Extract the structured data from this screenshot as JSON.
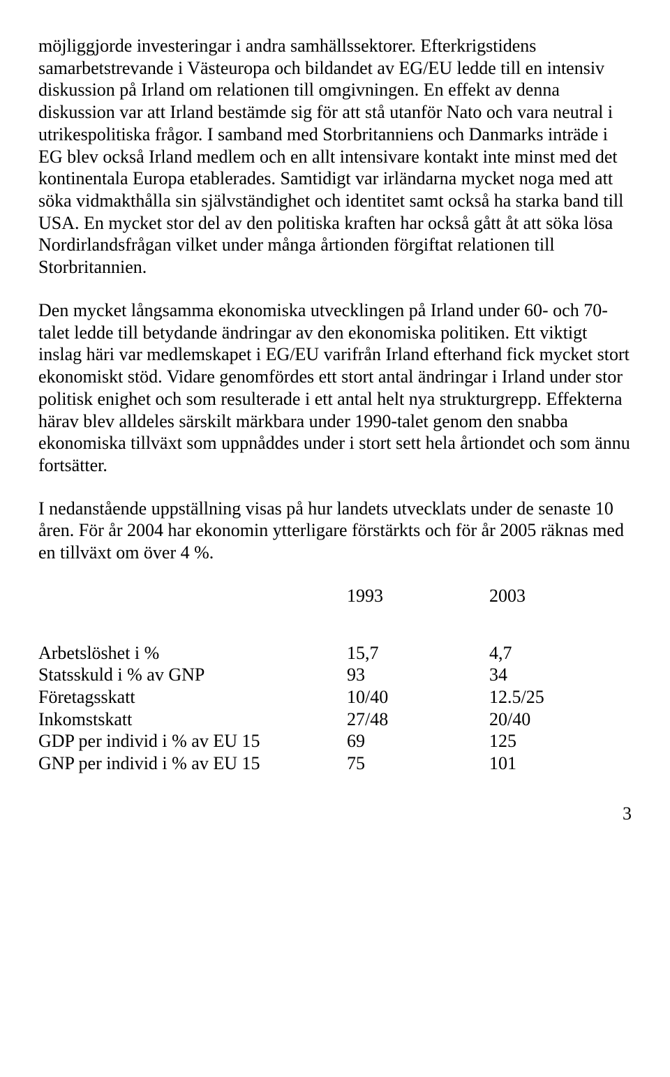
{
  "paragraphs": {
    "p1": "möjliggjorde investeringar i andra samhällssektorer. Efterkrigstidens samarbetstrevande i Västeuropa och bildandet av EG/EU ledde till en intensiv diskussion på Irland om relationen till omgivningen. En effekt av denna diskussion var att Irland bestämde sig för att stå utanför Nato och vara neutral i utrikespolitiska frågor. I samband med Storbritanniens och Danmarks inträde i EG blev också Irland medlem och en allt intensivare kontakt inte minst med det kontinentala Europa etablerades. Samtidigt var irländarna mycket noga med att söka vidmakthålla sin självständighet och identitet samt också ha starka band till USA. En mycket stor del av den politiska kraften har också gått åt att söka lösa Nordirlandsfrågan vilket under många årtionden förgiftat relationen till Storbritannien.",
    "p2": "Den mycket långsamma ekonomiska utvecklingen på Irland under 60- och 70-talet ledde till betydande ändringar av den ekonomiska politiken. Ett viktigt inslag häri var medlemskapet i EG/EU varifrån Irland efterhand fick mycket stort ekonomiskt stöd. Vidare genomfördes ett stort antal ändringar i Irland under stor politisk enighet och som resulterade i ett antal helt nya strukturgrepp. Effekterna härav blev alldeles särskilt märkbara under 1990-talet genom den snabba ekonomiska tillväxt som uppnåddes under i stort sett hela årtiondet och som ännu fortsätter.",
    "p3": "I nedanstående uppställning visas på hur landets utvecklats under de senaste 10 åren. För år 2004 har ekonomin ytterligare förstärkts och för år 2005 räknas med en tillväxt om över 4 %."
  },
  "table": {
    "header": {
      "label": "",
      "colA": "1993",
      "colB": "2003"
    },
    "rows": [
      {
        "label": "Arbetslöshet i %",
        "a": "15,7",
        "b": "4,7"
      },
      {
        "label": "Statsskuld i % av GNP",
        "a": "93",
        "b": "34"
      },
      {
        "label": "Företagsskatt",
        "a": "10/40",
        "b": "12.5/25"
      },
      {
        "label": "Inkomstskatt",
        "a": "27/48",
        "b": "20/40"
      },
      {
        "label": "GDP per individ i % av EU 15",
        "a": "69",
        "b": "125"
      },
      {
        "label": "GNP per individ i % av EU 15",
        "a": "75",
        "b": "101"
      }
    ]
  },
  "page_number": "3"
}
